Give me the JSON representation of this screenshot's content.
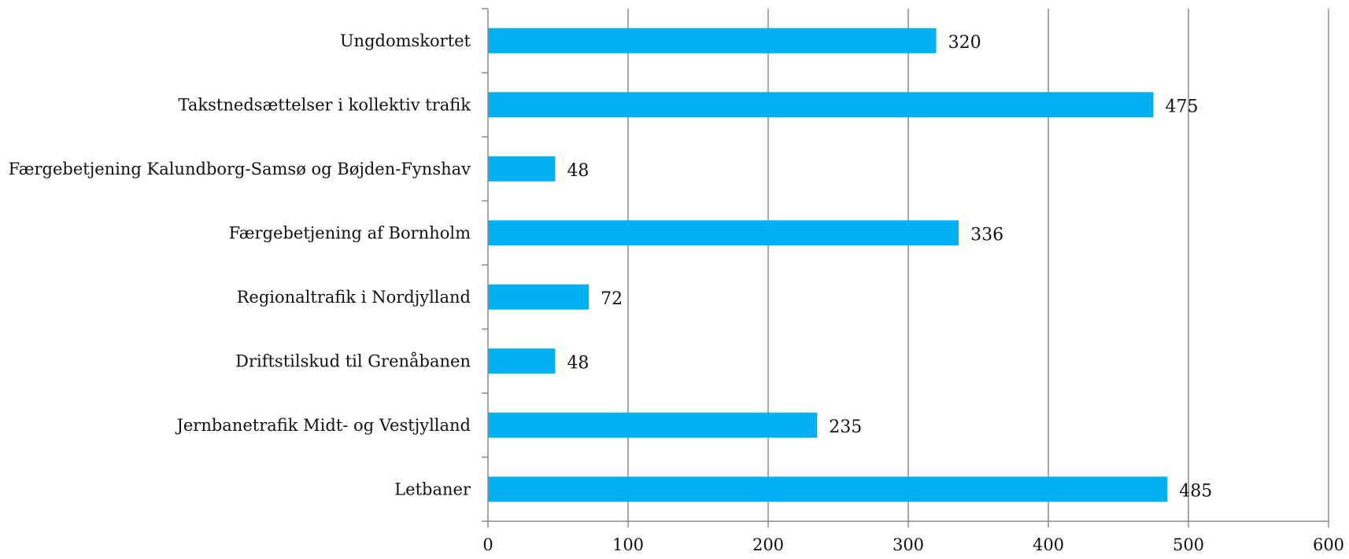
{
  "chart_data": {
    "type": "bar",
    "orientation": "horizontal",
    "categories": [
      "Ungdomskortet",
      "Takstnedsættelser i kollektiv trafik",
      "Færgebetjening Kalundborg-Samsø og Bøjden-Fynshav",
      "Færgebetjening af Bornholm",
      "Regionaltrafik i Nordjylland",
      "Driftstilskud til Grenåbanen",
      "Jernbanetrafik Midt- og Vestjylland",
      "Letbaner"
    ],
    "values": [
      320,
      475,
      48,
      336,
      72,
      48,
      235,
      485
    ],
    "data_labels": [
      "320",
      "475",
      "48",
      "336",
      "72",
      "48",
      "235",
      "485"
    ],
    "xlim": [
      0,
      600
    ],
    "xticks": [
      0,
      100,
      200,
      300,
      400,
      500,
      600
    ],
    "xtick_labels": [
      "0",
      "100",
      "200",
      "300",
      "400",
      "500",
      "600"
    ],
    "grid": true,
    "title": "",
    "xlabel": "",
    "ylabel": "",
    "colors": {
      "bar": "#00B0F0",
      "grid": "#8C8C8C",
      "axis": "#8C8C8C",
      "text": "#111111"
    }
  }
}
